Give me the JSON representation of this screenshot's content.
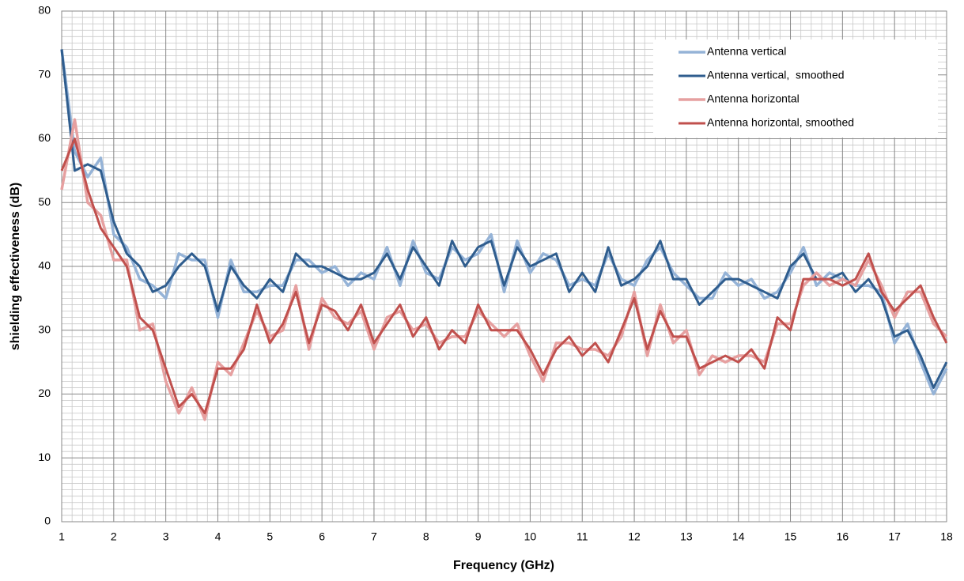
{
  "chart_data": {
    "type": "line",
    "x_label": "Frequency (GHz)",
    "y_label": "shielding effectiveness (dB)",
    "x": [
      1,
      1.25,
      1.5,
      1.75,
      2,
      2.25,
      2.5,
      2.75,
      3,
      3.25,
      3.5,
      3.75,
      4,
      4.25,
      4.5,
      4.75,
      5,
      5.25,
      5.5,
      5.75,
      6,
      6.25,
      6.5,
      6.75,
      7,
      7.25,
      7.5,
      7.75,
      8,
      8.25,
      8.5,
      8.75,
      9,
      9.25,
      9.5,
      9.75,
      10,
      10.25,
      10.5,
      10.75,
      11,
      11.25,
      11.5,
      11.75,
      12,
      12.25,
      12.5,
      12.75,
      13,
      13.25,
      13.5,
      13.75,
      14,
      14.25,
      14.5,
      14.75,
      15,
      15.25,
      15.5,
      15.75,
      16,
      16.25,
      16.5,
      16.75,
      17,
      17.25,
      17.5,
      17.75,
      18
    ],
    "series": [
      {
        "name": "Antenna vertical",
        "color": "#95b3d7",
        "width": 3.5,
        "values": [
          74,
          58,
          54,
          57,
          45,
          43,
          38,
          37,
          35,
          42,
          41,
          41,
          32,
          41,
          36,
          36,
          37,
          37,
          41,
          41,
          39,
          40,
          37,
          39,
          38,
          43,
          37,
          44,
          39,
          38,
          43,
          41,
          42,
          45,
          36,
          44,
          39,
          42,
          41,
          37,
          38,
          37,
          42,
          38,
          37,
          41,
          43,
          39,
          37,
          35,
          35,
          39,
          37,
          38,
          35,
          36,
          39,
          43,
          37,
          39,
          38,
          37,
          37,
          36,
          28,
          31,
          25,
          20,
          24
        ]
      },
      {
        "name": "Antenna vertical,  smoothed",
        "color": "#2f5d8e",
        "width": 3,
        "values": [
          74,
          55,
          56,
          55,
          47,
          42,
          40,
          36,
          37,
          40,
          42,
          40,
          33,
          40,
          37,
          35,
          38,
          36,
          42,
          40,
          40,
          39,
          38,
          38,
          39,
          42,
          38,
          43,
          40,
          37,
          44,
          40,
          43,
          44,
          37,
          43,
          40,
          41,
          42,
          36,
          39,
          36,
          43,
          37,
          38,
          40,
          44,
          38,
          38,
          34,
          36,
          38,
          38,
          37,
          36,
          35,
          40,
          42,
          38,
          38,
          39,
          36,
          38,
          35,
          29,
          30,
          26,
          21,
          25
        ]
      },
      {
        "name": "Antenna horizontal",
        "color": "#e6a0a0",
        "width": 3.5,
        "values": [
          52,
          63,
          50,
          48,
          41,
          41,
          30,
          31,
          22,
          17,
          21,
          16,
          25,
          23,
          28,
          33,
          29,
          30,
          37,
          27,
          35,
          32,
          31,
          33,
          27,
          32,
          33,
          30,
          31,
          28,
          29,
          29,
          33,
          31,
          29,
          31,
          26,
          22,
          28,
          28,
          27,
          27,
          26,
          29,
          36,
          26,
          34,
          28,
          30,
          23,
          26,
          25,
          26,
          26,
          25,
          31,
          31,
          37,
          39,
          37,
          38,
          37,
          41,
          37,
          32,
          36,
          36,
          31,
          29
        ]
      },
      {
        "name": "Antenna horizontal, smoothed",
        "color": "#c0504d",
        "width": 3,
        "values": [
          55,
          60,
          52,
          46,
          43,
          40,
          32,
          30,
          24,
          18,
          20,
          17,
          24,
          24,
          27,
          34,
          28,
          31,
          36,
          28,
          34,
          33,
          30,
          34,
          28,
          31,
          34,
          29,
          32,
          27,
          30,
          28,
          34,
          30,
          30,
          30,
          27,
          23,
          27,
          29,
          26,
          28,
          25,
          30,
          35,
          27,
          33,
          29,
          29,
          24,
          25,
          26,
          25,
          27,
          24,
          32,
          30,
          38,
          38,
          38,
          37,
          38,
          42,
          36,
          33,
          35,
          37,
          32,
          28
        ]
      }
    ],
    "xlim": [
      1,
      18
    ],
    "xticks": [
      1,
      2,
      3,
      4,
      5,
      6,
      7,
      8,
      9,
      10,
      11,
      12,
      13,
      14,
      15,
      16,
      17,
      18
    ],
    "ylim": [
      0,
      80
    ],
    "yticks": [
      0,
      10,
      20,
      30,
      40,
      50,
      60,
      70,
      80
    ],
    "grid": true,
    "legend": "top-right"
  }
}
